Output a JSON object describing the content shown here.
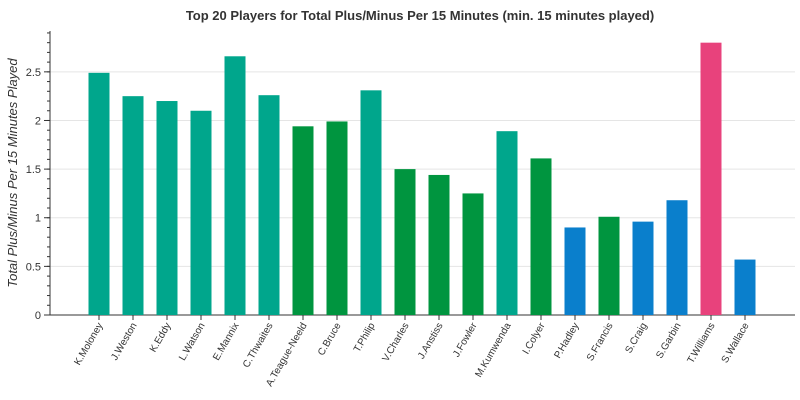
{
  "chart_data": {
    "type": "bar",
    "title": "Top 20 Players for Total Plus/Minus Per 15 Minutes (min. 15 minutes played)",
    "xlabel": "",
    "ylabel": "Total Plus/Minus Per 15 Minutes Played",
    "ylim": [
      0,
      2.92
    ],
    "yticks": [
      0,
      0.5,
      1,
      1.5,
      2,
      2.5
    ],
    "grid": true,
    "categories": [
      "K.Moloney",
      "J.Weston",
      "K.Eddy",
      "L.Watson",
      "E.Mannix",
      "C.Thwaites",
      "A.Teague-Neeld",
      "C.Bruce",
      "T.Philip",
      "V.Charles",
      "J.Anstiss",
      "J.Fowler",
      "M.Kumwenda",
      "I.Colyer",
      "P.Hadley",
      "S.Francis",
      "S.Craig",
      "S.Garbin",
      "T.Williams",
      "S.Wallace"
    ],
    "values": [
      2.49,
      2.25,
      2.2,
      2.1,
      2.66,
      2.26,
      1.94,
      1.99,
      2.31,
      1.5,
      1.44,
      1.25,
      1.89,
      1.61,
      0.9,
      1.01,
      0.96,
      1.18,
      2.8,
      0.57
    ],
    "colors": [
      "#00a68c",
      "#00a68c",
      "#00a68c",
      "#00a68c",
      "#00a68c",
      "#00a68c",
      "#00953f",
      "#00953f",
      "#00a68c",
      "#00953f",
      "#00953f",
      "#00953f",
      "#00a68c",
      "#00953f",
      "#0a7fcc",
      "#00953f",
      "#0a7fcc",
      "#0a7fcc",
      "#e8427c",
      "#0a7fcc"
    ]
  }
}
